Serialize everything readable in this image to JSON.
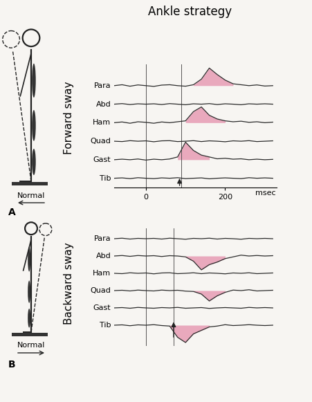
{
  "chart_data": [
    {
      "type": "line",
      "label": "A",
      "title": "Ankle strategy",
      "side_label": "Forward sway",
      "stance_label": "Normal",
      "x_label": "msec",
      "xlim": [
        -80,
        330
      ],
      "xticks": [
        0,
        200
      ],
      "tick_labels": "x",
      "event_times": [
        0,
        90
      ],
      "onset": 85,
      "x": [
        -80,
        -60,
        -40,
        -20,
        0,
        20,
        40,
        60,
        80,
        100,
        120,
        140,
        160,
        180,
        200,
        220,
        240,
        260,
        280,
        300,
        320
      ],
      "series": [
        {
          "name": "Para",
          "color": "#2b2b2b",
          "burst": [
            120,
            220
          ],
          "values": [
            0,
            0.05,
            -0.03,
            0.04,
            0,
            -0.04,
            0.03,
            0.05,
            0,
            -0.03,
            0.05,
            0.35,
            0.95,
            0.6,
            0.3,
            0.1,
            0.05,
            0,
            0.04,
            -0.02,
            0
          ]
        },
        {
          "name": "Abd",
          "color": "#2b2b2b",
          "values": [
            0,
            0.03,
            -0.02,
            0.02,
            0,
            0.02,
            -0.02,
            0.03,
            0,
            -0.03,
            0.02,
            0,
            0.03,
            -0.02,
            0.02,
            0,
            -0.03,
            0.02,
            0,
            0.02,
            0
          ]
        },
        {
          "name": "Ham",
          "color": "#2b2b2b",
          "burst": [
            100,
            200
          ],
          "values": [
            0,
            0.04,
            -0.03,
            0.05,
            0.02,
            -0.03,
            0.04,
            0,
            0.05,
            0.1,
            0.6,
            0.85,
            0.4,
            0.2,
            0.1,
            0.05,
            0.08,
            0.02,
            0.05,
            0,
            0.03
          ]
        },
        {
          "name": "Quad",
          "color": "#2b2b2b",
          "values": [
            0,
            -0.02,
            0.03,
            0,
            0.02,
            -0.03,
            0.02,
            0.03,
            -0.02,
            0,
            0.03,
            -0.02,
            0.02,
            0,
            -0.03,
            0.02,
            0,
            0.03,
            -0.02,
            0,
            0.02
          ]
        },
        {
          "name": "Gast",
          "color": "#2b2b2b",
          "burst": [
            80,
            160
          ],
          "values": [
            0,
            0.03,
            0,
            0.04,
            -0.02,
            0.03,
            0,
            0.04,
            0.15,
            0.95,
            0.5,
            0.25,
            0.15,
            0.05,
            0.08,
            0.03,
            0.05,
            0,
            0.03,
            0,
            0.02
          ]
        },
        {
          "name": "Tib",
          "color": "#2b2b2b",
          "values": [
            0,
            0.02,
            -0.02,
            0.03,
            0,
            -0.02,
            0.02,
            0,
            0.03,
            -0.02,
            0,
            0.02,
            -0.03,
            0,
            0.02,
            0,
            -0.02,
            0.03,
            0,
            0.02,
            0
          ]
        }
      ]
    },
    {
      "type": "line",
      "label": "B",
      "side_label": "Backward sway",
      "stance_label": "Normal",
      "xlim": [
        -80,
        330
      ],
      "tick_labels": false,
      "event_times": [
        0,
        70
      ],
      "onset": 70,
      "x": [
        -80,
        -60,
        -40,
        -20,
        0,
        20,
        40,
        60,
        80,
        100,
        120,
        140,
        160,
        180,
        200,
        220,
        240,
        260,
        280,
        300,
        320
      ],
      "series": [
        {
          "name": "Para",
          "color": "#2b2b2b",
          "values": [
            0,
            0.03,
            -0.02,
            0.02,
            0,
            0.02,
            -0.02,
            0.03,
            0,
            -0.03,
            0.02,
            0,
            0.03,
            -0.02,
            0.02,
            0,
            -0.03,
            0.02,
            0,
            0.02,
            0
          ]
        },
        {
          "name": "Abd",
          "color": "#2b2b2b",
          "burst": [
            100,
            200
          ],
          "values": [
            0,
            0.03,
            -0.02,
            0.03,
            0,
            0.02,
            -0.03,
            0.02,
            0,
            -0.05,
            -0.3,
            -0.8,
            -0.5,
            -0.35,
            -0.15,
            -0.05,
            0.05,
            0,
            0.03,
            0,
            0.02
          ]
        },
        {
          "name": "Ham",
          "color": "#2b2b2b",
          "values": [
            0,
            -0.02,
            0.03,
            0,
            0.02,
            -0.03,
            0.02,
            0.03,
            -0.02,
            0,
            0.03,
            -0.02,
            0.02,
            0,
            -0.03,
            0.02,
            0,
            0.03,
            -0.02,
            0,
            0.02
          ]
        },
        {
          "name": "Quad",
          "color": "#2b2b2b",
          "burst": [
            120,
            200
          ],
          "values": [
            0,
            0.02,
            -0.02,
            0.03,
            0,
            -0.02,
            0.03,
            0,
            0.02,
            -0.03,
            -0.05,
            -0.2,
            -0.6,
            -0.3,
            -0.1,
            0.03,
            0,
            0.05,
            -0.02,
            0,
            0.02
          ]
        },
        {
          "name": "Gast",
          "color": "#2b2b2b",
          "values": [
            0,
            0.02,
            -0.02,
            0.03,
            0,
            -0.02,
            0.02,
            0,
            0.03,
            -0.02,
            0,
            0.02,
            -0.03,
            0,
            0.02,
            0,
            -0.02,
            0.03,
            0,
            0.02,
            0
          ]
        },
        {
          "name": "Tib",
          "color": "#2b2b2b",
          "burst": [
            60,
            160
          ],
          "values": [
            0,
            0.02,
            -0.03,
            0.02,
            0,
            0.03,
            -0.02,
            -0.05,
            -0.7,
            -1.0,
            -0.5,
            -0.3,
            -0.1,
            -0.05,
            0.03,
            -0.02,
            0,
            0.03,
            0,
            -0.02,
            0
          ]
        }
      ]
    }
  ]
}
